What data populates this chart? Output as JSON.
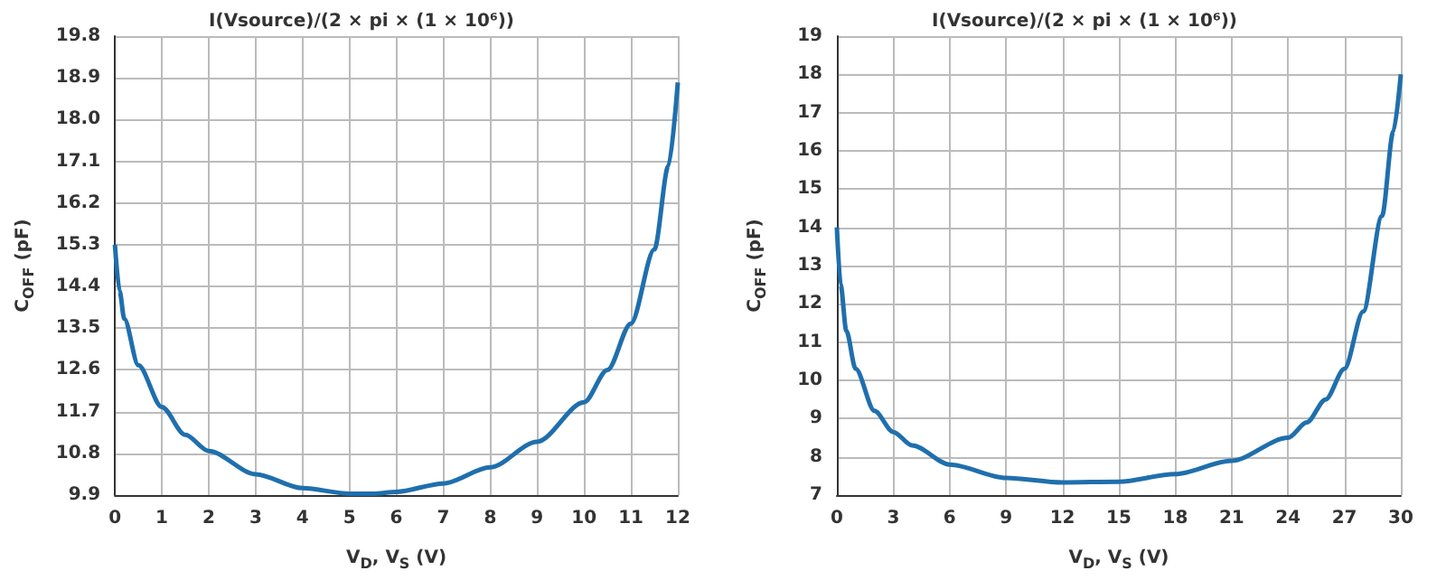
{
  "chart_data": [
    {
      "type": "line",
      "title": "I(Vsource)/(2 × pi × (1 × 10⁶))",
      "xlabel": "V$_{D}$, V$_{S}$ (V)",
      "ylabel": "C$_{OFF}$ (pF)",
      "x": [
        0,
        0.1,
        0.2,
        0.5,
        1,
        1.5,
        2,
        3,
        4,
        5,
        5.5,
        6,
        7,
        8,
        9,
        10,
        10.5,
        11,
        11.5,
        11.8,
        12
      ],
      "series": [
        {
          "color": "#1f6fad",
          "values": [
            15.3,
            14.3,
            13.7,
            12.7,
            11.8,
            11.2,
            10.85,
            10.35,
            10.05,
            9.93,
            9.93,
            9.97,
            10.15,
            10.5,
            11.05,
            11.9,
            12.6,
            13.6,
            15.2,
            17,
            18.8
          ]
        }
      ],
      "xlim": [
        0,
        12
      ],
      "xticks": [
        0,
        1,
        2,
        3,
        4,
        5,
        6,
        7,
        8,
        9,
        10,
        11,
        12
      ],
      "ylim": [
        9.9,
        19.8
      ],
      "yticks": [
        9.9,
        10.8,
        11.7,
        12.6,
        13.5,
        14.4,
        15.3,
        16.2,
        17.1,
        {
          "value": 18,
          "label": "18.0"
        },
        18.9,
        19.8
      ],
      "grid": true,
      "marker": "none",
      "line_style": "solid"
    },
    {
      "type": "line",
      "title": "I(Vsource)/(2 × pi × (1 × 10⁶))",
      "xlabel": "V$_{D}$, V$_{S}$ (V)",
      "ylabel": "C$_{OFF}$ (pF)",
      "x": [
        0,
        0.2,
        0.5,
        1,
        2,
        3,
        4,
        6,
        9,
        12,
        15,
        18,
        21,
        24,
        25,
        26,
        27,
        28,
        29,
        29.6,
        30
      ],
      "series": [
        {
          "color": "#1f6fad",
          "values": [
            14,
            12.5,
            11.3,
            10.3,
            9.2,
            8.65,
            8.3,
            7.8,
            7.45,
            7.33,
            7.35,
            7.55,
            7.9,
            8.5,
            8.9,
            9.5,
            10.3,
            11.8,
            14.3,
            16.5,
            18
          ]
        }
      ],
      "xlim": [
        0,
        30
      ],
      "xticks": [
        0,
        3,
        6,
        9,
        12,
        15,
        18,
        21,
        24,
        27,
        30
      ],
      "ylim": [
        7,
        19
      ],
      "yticks": [
        7,
        8,
        9,
        10,
        11,
        12,
        13,
        14,
        15,
        16,
        17,
        18,
        19
      ],
      "grid": true,
      "marker": "none",
      "line_style": "solid"
    }
  ]
}
